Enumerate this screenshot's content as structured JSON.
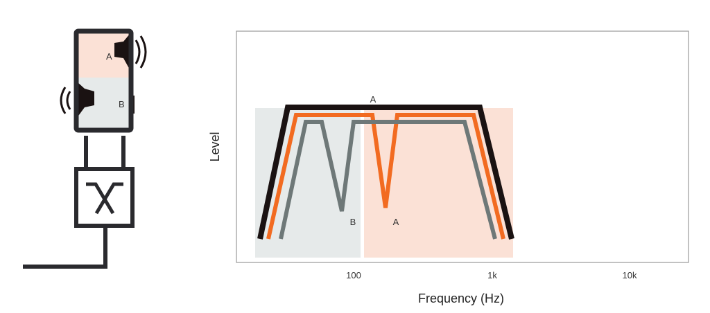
{
  "speaker": {
    "driver_a_label": "A",
    "driver_b_label": "B"
  },
  "plot": {
    "ylabel": "Level",
    "xlabel": "Frequency (Hz)",
    "x_ticks": [
      "100",
      "1k",
      "10k"
    ],
    "x_scale": "log",
    "annotations": {
      "top": "A",
      "dip_b": "B",
      "dip_a": "A"
    }
  },
  "colors": {
    "total_response": "#1a1212",
    "driver_a_response": "#f26b21",
    "driver_b_response": "#6e7878",
    "driver_a_region": "#fbe1d6",
    "driver_b_region": "#e6eaea",
    "outline": "#2a2a2e"
  }
}
